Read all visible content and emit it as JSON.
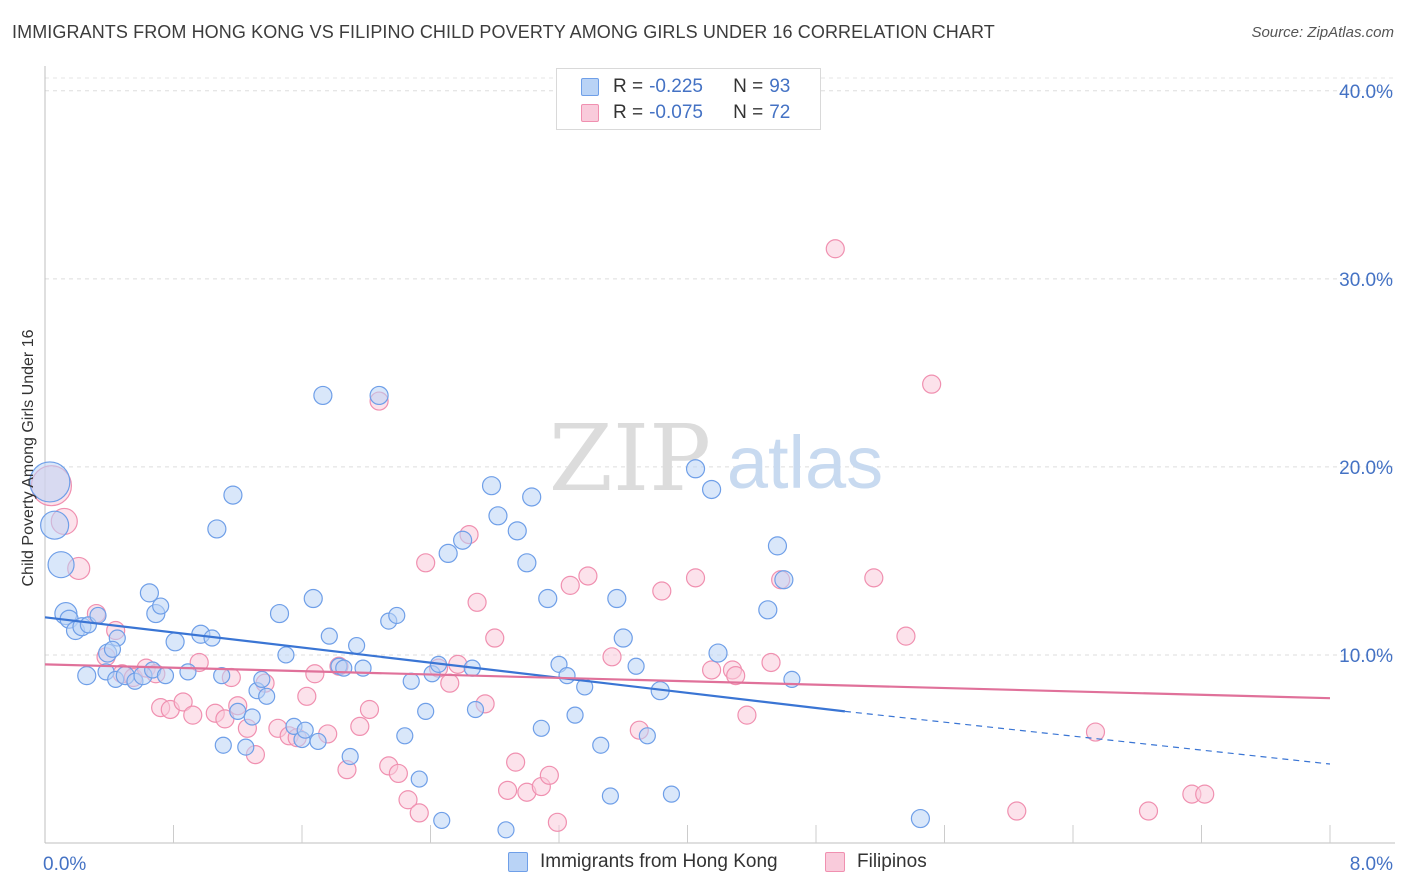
{
  "header": {
    "title": "IMMIGRANTS FROM HONG KONG VS FILIPINO CHILD POVERTY AMONG GIRLS UNDER 16 CORRELATION CHART",
    "source": "Source: ZipAtlas.com"
  },
  "watermark": {
    "part1": "ZIP",
    "part2": "atlas"
  },
  "legend": {
    "rows": [
      {
        "r_label": "R =",
        "r_value": "-0.225",
        "n_label": "N =",
        "n_value": "93",
        "color": "#6f9fe8",
        "fill": "#b9d3f6"
      },
      {
        "r_label": "R =",
        "r_value": "-0.075",
        "n_label": "N =",
        "n_value": "72",
        "color": "#f090b0",
        "fill": "#f9cbdb"
      }
    ]
  },
  "bottom_legend": [
    {
      "label": "Immigrants from Hong Kong",
      "color": "#6f9fe8",
      "fill": "#b9d3f6"
    },
    {
      "label": "Filipinos",
      "color": "#f090b0",
      "fill": "#f9cbdb"
    }
  ],
  "chart_data": {
    "type": "scatter",
    "title": "IMMIGRANTS FROM HONG KONG VS FILIPINO CHILD POVERTY AMONG GIRLS UNDER 16 CORRELATION CHART",
    "xlabel": "",
    "ylabel": "Child Poverty Among Girls Under 16",
    "xlim": [
      0,
      8
    ],
    "ylim": [
      0,
      41
    ],
    "x_tick_labels": [
      "0.0%",
      "8.0%"
    ],
    "y_ticks": [
      10,
      20,
      30,
      40
    ],
    "y_tick_labels": [
      "10.0%",
      "20.0%",
      "30.0%",
      "40.0%"
    ],
    "grid": true,
    "legend_position": "top-center",
    "series": [
      {
        "name": "Immigrants from Hong Kong",
        "color": "#3a75d4",
        "fill": "#b9d3f6",
        "stroke": "#6f9fe8",
        "points": [
          [
            0.03,
            19.2,
            20
          ],
          [
            0.06,
            16.9,
            14
          ],
          [
            0.1,
            14.8,
            13
          ],
          [
            0.13,
            12.2,
            11
          ],
          [
            0.15,
            11.9,
            9
          ],
          [
            0.19,
            11.3,
            9
          ],
          [
            0.23,
            11.5,
            9
          ],
          [
            0.27,
            11.6,
            8
          ],
          [
            0.33,
            12.1,
            8
          ],
          [
            0.39,
            10.1,
            9
          ],
          [
            0.45,
            10.9,
            8
          ],
          [
            0.42,
            10.3,
            8
          ],
          [
            0.26,
            8.9,
            9
          ],
          [
            0.38,
            9.1,
            8
          ],
          [
            0.44,
            8.7,
            8
          ],
          [
            0.5,
            8.9,
            9
          ],
          [
            0.56,
            8.6,
            8
          ],
          [
            0.61,
            8.9,
            9
          ],
          [
            0.67,
            9.2,
            8
          ],
          [
            0.75,
            8.9,
            8
          ],
          [
            0.65,
            13.3,
            9
          ],
          [
            0.69,
            12.2,
            9
          ],
          [
            0.72,
            12.6,
            8
          ],
          [
            0.81,
            10.7,
            9
          ],
          [
            0.89,
            9.1,
            8
          ],
          [
            0.97,
            11.1,
            9
          ],
          [
            1.04,
            10.9,
            8
          ],
          [
            1.07,
            16.7,
            9
          ],
          [
            1.1,
            8.9,
            8
          ],
          [
            1.17,
            18.5,
            9
          ],
          [
            1.11,
            5.2,
            8
          ],
          [
            1.2,
            7.0,
            8
          ],
          [
            1.25,
            5.1,
            8
          ],
          [
            1.29,
            6.7,
            8
          ],
          [
            1.32,
            8.1,
            8
          ],
          [
            1.38,
            7.8,
            8
          ],
          [
            1.35,
            8.7,
            8
          ],
          [
            1.46,
            12.2,
            9
          ],
          [
            1.5,
            10.0,
            8
          ],
          [
            1.55,
            6.2,
            8
          ],
          [
            1.6,
            5.5,
            8
          ],
          [
            1.62,
            6.0,
            8
          ],
          [
            1.67,
            13.0,
            9
          ],
          [
            1.7,
            5.4,
            8
          ],
          [
            1.73,
            23.8,
            9
          ],
          [
            1.77,
            11.0,
            8
          ],
          [
            1.83,
            9.4,
            8
          ],
          [
            1.86,
            9.3,
            8
          ],
          [
            1.9,
            4.6,
            8
          ],
          [
            1.94,
            10.5,
            8
          ],
          [
            1.98,
            9.3,
            8
          ],
          [
            2.08,
            23.8,
            9
          ],
          [
            2.14,
            11.8,
            8
          ],
          [
            2.19,
            12.1,
            8
          ],
          [
            2.24,
            5.7,
            8
          ],
          [
            2.28,
            8.6,
            8
          ],
          [
            2.33,
            3.4,
            8
          ],
          [
            2.37,
            7.0,
            8
          ],
          [
            2.41,
            9.0,
            8
          ],
          [
            2.45,
            9.5,
            8
          ],
          [
            2.47,
            1.2,
            8
          ],
          [
            2.51,
            15.4,
            9
          ],
          [
            2.6,
            16.1,
            9
          ],
          [
            2.66,
            9.3,
            8
          ],
          [
            2.68,
            7.1,
            8
          ],
          [
            2.78,
            19.0,
            9
          ],
          [
            2.82,
            17.4,
            9
          ],
          [
            2.87,
            0.7,
            8
          ],
          [
            2.94,
            16.6,
            9
          ],
          [
            3.0,
            14.9,
            9
          ],
          [
            3.03,
            18.4,
            9
          ],
          [
            3.09,
            6.1,
            8
          ],
          [
            3.13,
            13.0,
            9
          ],
          [
            3.2,
            9.5,
            8
          ],
          [
            3.25,
            8.9,
            8
          ],
          [
            3.3,
            6.8,
            8
          ],
          [
            3.36,
            8.3,
            8
          ],
          [
            3.46,
            5.2,
            8
          ],
          [
            3.52,
            2.5,
            8
          ],
          [
            3.56,
            13.0,
            9
          ],
          [
            3.6,
            10.9,
            9
          ],
          [
            3.68,
            9.4,
            8
          ],
          [
            3.75,
            5.7,
            8
          ],
          [
            3.83,
            8.1,
            9
          ],
          [
            3.9,
            2.6,
            8
          ],
          [
            4.05,
            19.9,
            9
          ],
          [
            4.15,
            18.8,
            9
          ],
          [
            4.19,
            10.1,
            9
          ],
          [
            4.5,
            12.4,
            9
          ],
          [
            4.56,
            15.8,
            9
          ],
          [
            4.6,
            14.0,
            9
          ],
          [
            4.65,
            8.7,
            8
          ],
          [
            5.45,
            1.3,
            9
          ]
        ],
        "trend": {
          "x": [
            0,
            4.98
          ],
          "y": [
            12.0,
            7.0
          ],
          "dashed_to": [
            8.0,
            4.2
          ]
        }
      },
      {
        "name": "Filipinos",
        "color": "#e0719a",
        "fill": "#f9cbdb",
        "stroke": "#f090b0",
        "points": [
          [
            0.04,
            19.0,
            20
          ],
          [
            0.12,
            17.1,
            13
          ],
          [
            0.21,
            14.6,
            11
          ],
          [
            0.32,
            12.2,
            9
          ],
          [
            0.38,
            9.9,
            9
          ],
          [
            0.44,
            11.3,
            9
          ],
          [
            0.48,
            9.0,
            9
          ],
          [
            0.55,
            8.8,
            9
          ],
          [
            0.63,
            9.3,
            9
          ],
          [
            0.69,
            9.0,
            9
          ],
          [
            0.72,
            7.2,
            9
          ],
          [
            0.78,
            7.1,
            9
          ],
          [
            0.86,
            7.5,
            9
          ],
          [
            0.92,
            6.8,
            9
          ],
          [
            0.96,
            9.6,
            9
          ],
          [
            1.06,
            6.9,
            9
          ],
          [
            1.12,
            6.6,
            9
          ],
          [
            1.16,
            8.8,
            9
          ],
          [
            1.2,
            7.3,
            9
          ],
          [
            1.26,
            6.1,
            9
          ],
          [
            1.31,
            4.7,
            9
          ],
          [
            1.37,
            8.5,
            9
          ],
          [
            1.45,
            6.1,
            9
          ],
          [
            1.52,
            5.7,
            9
          ],
          [
            1.57,
            5.6,
            9
          ],
          [
            1.63,
            7.8,
            9
          ],
          [
            1.68,
            9.0,
            9
          ],
          [
            1.76,
            5.8,
            9
          ],
          [
            1.83,
            9.4,
            9
          ],
          [
            1.88,
            3.9,
            9
          ],
          [
            1.96,
            6.2,
            9
          ],
          [
            2.02,
            7.1,
            9
          ],
          [
            2.08,
            23.5,
            9
          ],
          [
            2.14,
            4.1,
            9
          ],
          [
            2.2,
            3.7,
            9
          ],
          [
            2.26,
            2.3,
            9
          ],
          [
            2.33,
            1.6,
            9
          ],
          [
            2.37,
            14.9,
            9
          ],
          [
            2.45,
            9.3,
            9
          ],
          [
            2.52,
            8.5,
            9
          ],
          [
            2.57,
            9.5,
            9
          ],
          [
            2.64,
            16.4,
            9
          ],
          [
            2.69,
            12.8,
            9
          ],
          [
            2.74,
            7.4,
            9
          ],
          [
            2.8,
            10.9,
            9
          ],
          [
            2.88,
            2.8,
            9
          ],
          [
            2.93,
            4.3,
            9
          ],
          [
            3.0,
            2.7,
            9
          ],
          [
            3.09,
            3.0,
            9
          ],
          [
            3.14,
            3.6,
            9
          ],
          [
            3.19,
            1.1,
            9
          ],
          [
            3.27,
            13.7,
            9
          ],
          [
            3.38,
            14.2,
            9
          ],
          [
            3.53,
            9.9,
            9
          ],
          [
            3.7,
            6.0,
            9
          ],
          [
            3.84,
            13.4,
            9
          ],
          [
            4.05,
            14.1,
            9
          ],
          [
            4.28,
            9.2,
            9
          ],
          [
            4.3,
            8.9,
            9
          ],
          [
            4.37,
            6.8,
            9
          ],
          [
            4.58,
            14.0,
            9
          ],
          [
            4.92,
            31.6,
            9
          ],
          [
            5.16,
            14.1,
            9
          ],
          [
            5.36,
            11.0,
            9
          ],
          [
            5.52,
            24.4,
            9
          ],
          [
            6.05,
            1.7,
            9
          ],
          [
            6.54,
            5.9,
            9
          ],
          [
            6.87,
            1.7,
            9
          ],
          [
            7.14,
            2.6,
            9
          ],
          [
            7.22,
            2.6,
            9
          ],
          [
            4.15,
            9.2,
            9
          ],
          [
            4.52,
            9.6,
            9
          ]
        ],
        "trend": {
          "x": [
            0,
            8.0
          ],
          "y": [
            9.5,
            7.7
          ]
        }
      }
    ]
  }
}
